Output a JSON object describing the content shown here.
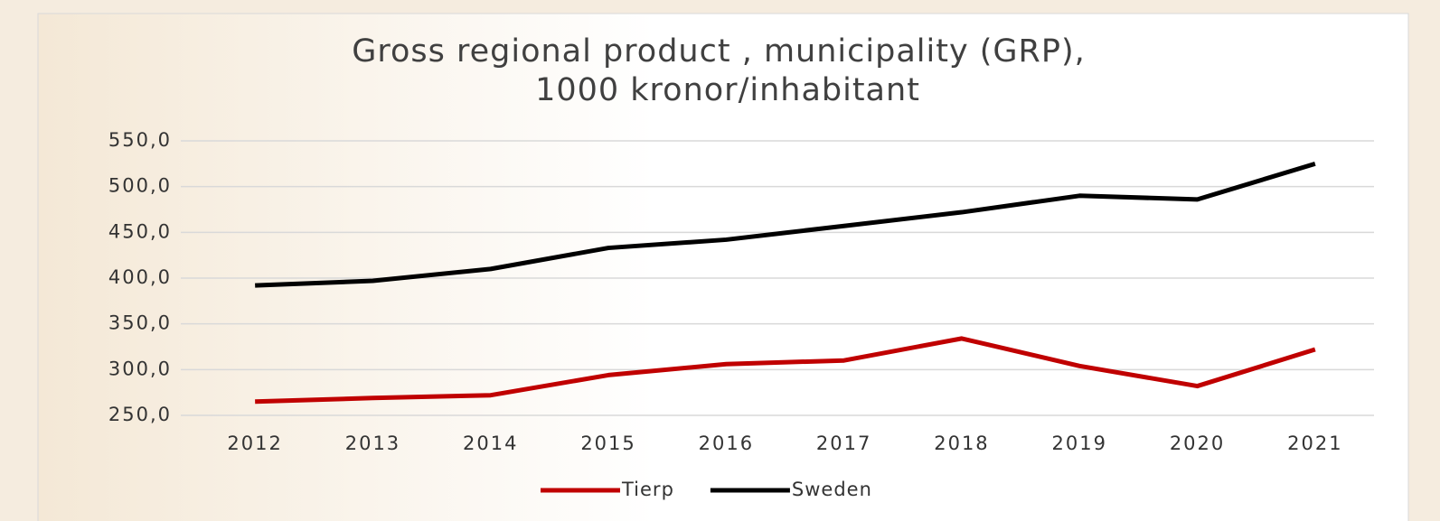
{
  "chart_data": {
    "type": "line",
    "title": [
      "Gross regional product , municipality (GRP),",
      "1000 kronor/inhabitant"
    ],
    "categories": [
      "2012",
      "2013",
      "2014",
      "2015",
      "2016",
      "2017",
      "2018",
      "2019",
      "2020",
      "2021"
    ],
    "series": [
      {
        "name": "Tierp",
        "color": "#c00000",
        "values": [
          265,
          269,
          272,
          294,
          306,
          310,
          334,
          304,
          282,
          322
        ]
      },
      {
        "name": "Sweden",
        "color": "#000000",
        "values": [
          392,
          397,
          410,
          433,
          442,
          457,
          472,
          490,
          486,
          525
        ]
      }
    ],
    "ylim": [
      250,
      550
    ],
    "yticks": [
      {
        "value": 250,
        "label": "250,0"
      },
      {
        "value": 300,
        "label": "300,0"
      },
      {
        "value": 350,
        "label": "350,0"
      },
      {
        "value": 400,
        "label": "400,0"
      },
      {
        "value": 450,
        "label": "450,0"
      },
      {
        "value": 500,
        "label": "500,0"
      },
      {
        "value": 550,
        "label": "550,0"
      }
    ],
    "grid": true,
    "legend": "bottom"
  }
}
